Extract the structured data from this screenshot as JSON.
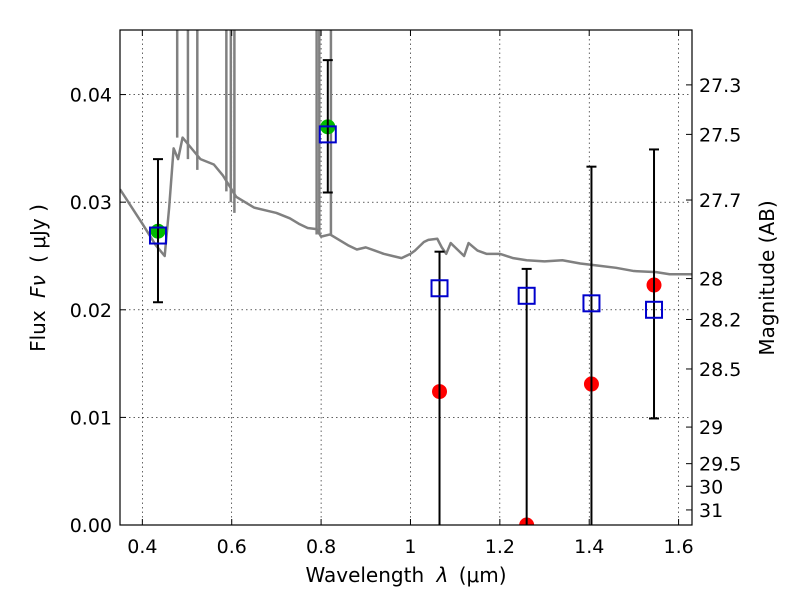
{
  "chart_data": {
    "type": "scatter",
    "title": "",
    "xlabel": "Wavelength",
    "xlabel_symbol": "λ",
    "xlabel_unit": "(μm)",
    "ylabel": "Flux",
    "ylabel_symbol": "Fν",
    "ylabel_unit": "( μJy )",
    "y2label": "Magnitude (AB)",
    "xlim": [
      0.35,
      1.63
    ],
    "ylim": [
      0.0,
      0.046
    ],
    "grid": true,
    "x_ticks": [
      0.4,
      0.6,
      0.8,
      1.0,
      1.2,
      1.4,
      1.6
    ],
    "x_tick_labels": [
      "0.4",
      "0.6",
      "0.8",
      "1",
      "1.2",
      "1.4",
      "1.6"
    ],
    "y_ticks": [
      0.0,
      0.01,
      0.02,
      0.03,
      0.04
    ],
    "y_tick_labels": [
      "0.00",
      "0.01",
      "0.02",
      "0.03",
      "0.04"
    ],
    "y2_ticks": [
      {
        "label": "27.3",
        "flux": 0.0409
      },
      {
        "label": "27.5",
        "flux": 0.0363
      },
      {
        "label": "27.7",
        "flux": 0.0302
      },
      {
        "label": "28",
        "flux": 0.0229
      },
      {
        "label": "28.2",
        "flux": 0.0191
      },
      {
        "label": "28.5",
        "flux": 0.0145
      },
      {
        "label": "29",
        "flux": 0.0091
      },
      {
        "label": "29.5",
        "flux": 0.0057
      },
      {
        "label": "30",
        "flux": 0.0036
      },
      {
        "label": "31",
        "flux": 0.0014
      }
    ],
    "series": [
      {
        "kind": "line",
        "color": "#808080",
        "x": [
          0.35,
          0.4,
          0.43,
          0.45,
          0.46,
          0.47,
          0.48,
          0.49,
          0.5,
          0.53,
          0.56,
          0.58,
          0.61,
          0.63,
          0.65,
          0.68,
          0.7,
          0.73,
          0.75,
          0.77,
          0.79,
          0.8,
          0.82,
          0.84,
          0.86,
          0.88,
          0.9,
          0.92,
          0.94,
          0.96,
          0.98,
          1.0,
          1.01,
          1.03,
          1.04,
          1.06,
          1.07,
          1.08,
          1.09,
          1.1,
          1.12,
          1.13,
          1.15,
          1.17,
          1.2,
          1.23,
          1.26,
          1.3,
          1.34,
          1.38,
          1.42,
          1.46,
          1.5,
          1.55,
          1.58,
          1.63
        ],
        "y": [
          0.0312,
          0.028,
          0.026,
          0.025,
          0.0295,
          0.035,
          0.034,
          0.036,
          0.0355,
          0.034,
          0.0335,
          0.0325,
          0.0305,
          0.03,
          0.0295,
          0.0292,
          0.029,
          0.0285,
          0.028,
          0.0276,
          0.0275,
          0.0268,
          0.027,
          0.0265,
          0.026,
          0.0256,
          0.0258,
          0.0255,
          0.0252,
          0.025,
          0.0248,
          0.0252,
          0.0255,
          0.0263,
          0.0265,
          0.0266,
          0.0258,
          0.0252,
          0.0262,
          0.0258,
          0.025,
          0.0262,
          0.0255,
          0.0252,
          0.0252,
          0.0248,
          0.0246,
          0.0245,
          0.0246,
          0.0243,
          0.0241,
          0.0239,
          0.0236,
          0.0235,
          0.0233,
          0.0233
        ]
      },
      {
        "kind": "spikes",
        "color": "#808080",
        "x": [
          0.478,
          0.502,
          0.523,
          0.588,
          0.598,
          0.606,
          0.79,
          0.796,
          0.822
        ],
        "y_base": [
          0.036,
          0.034,
          0.033,
          0.031,
          0.03,
          0.029,
          0.027,
          0.027,
          0.027
        ],
        "y_top": [
          0.046,
          0.046,
          0.046,
          0.046,
          0.046,
          0.046,
          0.046,
          0.046,
          0.046
        ]
      },
      {
        "kind": "errorbar",
        "color": "#000000",
        "x": [
          0.435,
          0.815,
          1.065,
          1.26,
          1.405,
          1.545
        ],
        "low": [
          0.0207,
          0.0309,
          0.0,
          0.0,
          0.0,
          0.0099
        ],
        "high": [
          0.034,
          0.0432,
          0.0254,
          0.0238,
          0.0333,
          0.0349
        ],
        "cap_top": [
          true,
          true,
          true,
          true,
          true,
          true
        ],
        "cap_bottom": [
          true,
          true,
          false,
          false,
          false,
          true
        ]
      },
      {
        "kind": "open-square",
        "color": "#0000cc",
        "x": [
          0.435,
          0.815,
          1.065,
          1.26,
          1.405,
          1.545
        ],
        "y": [
          0.0269,
          0.0363,
          0.022,
          0.0213,
          0.0206,
          0.02
        ]
      },
      {
        "kind": "filled-circle",
        "color": "#00bb00",
        "x": [
          0.435,
          0.815
        ],
        "y": [
          0.0273,
          0.037
        ]
      },
      {
        "kind": "filled-circle",
        "color": "#ff0000",
        "x": [
          1.065,
          1.26,
          1.405,
          1.545
        ],
        "y": [
          0.0124,
          0.0,
          0.0131,
          0.0223
        ]
      }
    ]
  }
}
